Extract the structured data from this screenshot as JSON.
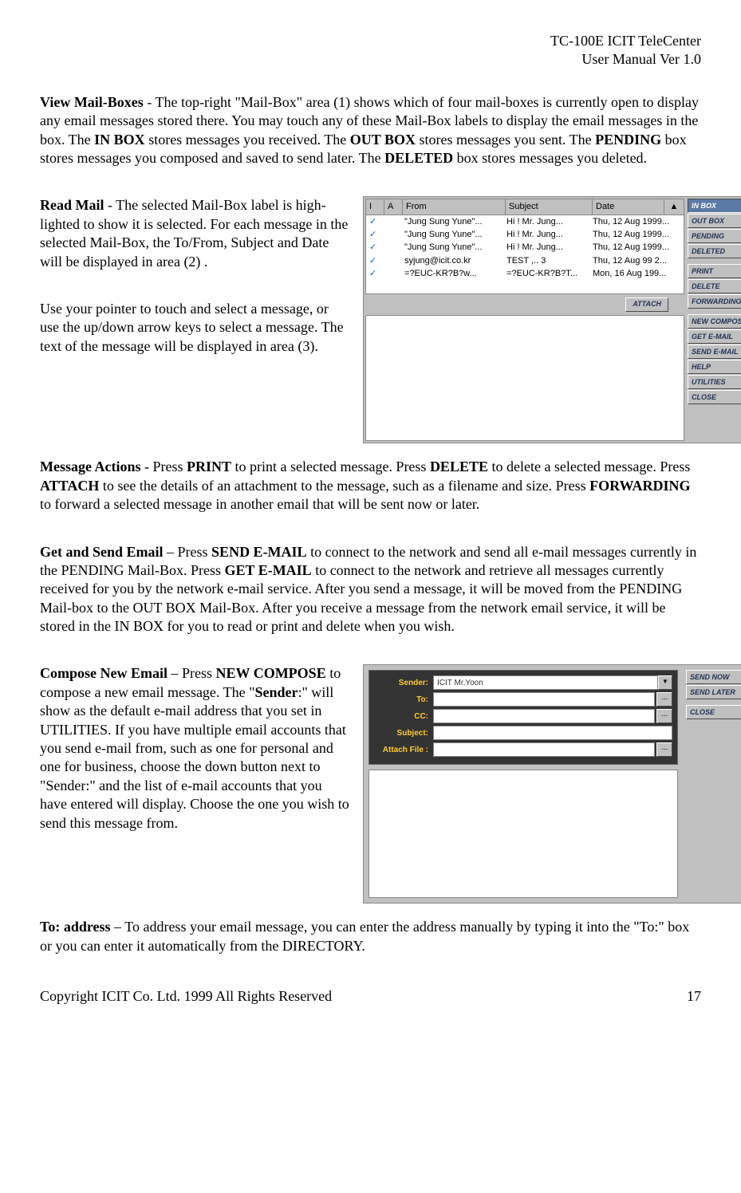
{
  "header": {
    "line1": "TC-100E ICIT TeleCenter",
    "line2": "User Manual  Ver 1.0"
  },
  "p1": {
    "lead": "View Mail-Boxes",
    "t1": " - The top-right \"Mail-Box\" area (1) shows which of four mail-boxes is currently open to display any email messages stored there. You may touch any of these Mail-Box labels to display the email messages in the box. The ",
    "b1": "IN BOX",
    "t2": " stores messages you received. The ",
    "b2": "OUT BOX",
    "t3": " stores messages you sent. The ",
    "b3": "PENDING",
    "t4": " box stores messages you composed and saved to send later. The ",
    "b4": "DELETED",
    "t5": " box stores messages you deleted."
  },
  "p2": {
    "lead": "Read Mail",
    "t1": " - The selected Mail-Box label is high-lighted to show it is selected. For each message in the selected Mail-Box, the To/From, Subject and Date will be displayed in area (2) ."
  },
  "p3": {
    "t1": "Use your pointer to touch and select a message, or use the up/down arrow keys to select a message. The text of the message will be displayed in area (3)."
  },
  "p4": {
    "lead": "Message Actions",
    "t1": " - Press ",
    "b1": "PRINT",
    "t2": " to print a selected message. Press ",
    "b2": "DELETE",
    "t3": " to delete a selected message. Press ",
    "b3": "ATTACH",
    "t4": " to see the details of an attachment to the message, such as a filename and size. Press ",
    "b4": "FORWARDING",
    "t5": " to forward a selected message in another email that will be sent now or later."
  },
  "p5": {
    "lead": "Get and Send Email",
    "t1": " – Press ",
    "b1": "SEND E-MAIL",
    "t2": " to connect to the network and send all e-mail messages currently in the PENDING Mail-Box. Press ",
    "b2": "GET E-MAIL",
    "t3": " to connect to the network and retrieve all messages currently received for you by the network e-mail service.  After you send a message, it will be moved from the PENDING Mail-box to the OUT BOX Mail-Box. After you receive a message from the network email service, it will be stored in the IN BOX for you to read or print and delete when you wish."
  },
  "p6": {
    "lead": "Compose New Email",
    "t1": " –  Press ",
    "b1": "NEW COMPOSE",
    "t2": " to compose a new email message.  The \"",
    "b2": "Sender",
    "t3": ":\" will show as the default e-mail address that you set in UTILITIES. If you have multiple email accounts that you send e-mail from, such as one for personal and one for business, choose the down button next to \"Sender:\" and the list of e-mail accounts that you have entered will display. Choose the one you wish to send this message from."
  },
  "p7": {
    "lead": "To:  address",
    "t1": " – To address your email message, you can enter the address manually by typing it into the \"To:\"  box or you can enter it automatically from the DIRECTORY."
  },
  "footer": {
    "copyright": "Copyright ICIT Co. Ltd. 1999  All Rights Reserved",
    "page": "17"
  },
  "shot1": {
    "columns": {
      "i": "I",
      "a": "A",
      "from": "From",
      "subject": "Subject",
      "date": "Date",
      "scroll": "▲"
    },
    "rows": [
      {
        "check": "✓",
        "from": "\"Jung Sung Yune\"...",
        "subject": "Hi ! Mr. Jung...",
        "date": "Thu, 12 Aug 1999..."
      },
      {
        "check": "✓",
        "from": "\"Jung Sung Yune\"...",
        "subject": "Hi ! Mr. Jung...",
        "date": "Thu, 12 Aug 1999..."
      },
      {
        "check": "✓",
        "from": "\"Jung Sung Yune\"...",
        "subject": "Hi ! Mr. Jung...",
        "date": "Thu, 12 Aug 1999..."
      },
      {
        "check": "✓",
        "from": "syjung@icit.co.kr",
        "subject": "TEST ,.. 3",
        "date": "Thu, 12 Aug 99 2..."
      },
      {
        "check": "✓",
        "from": "=?EUC-KR?B?w...",
        "subject": "=?EUC-KR?B?T...",
        "date": "Mon, 16 Aug 199..."
      }
    ],
    "attach": "ATTACH",
    "side": {
      "inbox": "IN BOX",
      "outbox": "OUT BOX",
      "pending": "PENDING",
      "deleted": "DELETED",
      "print": "PRINT",
      "delete": "DELETE",
      "forwarding": "FORWARDING",
      "newcompose": "NEW COMPOSE",
      "getemail": "GET E-MAIL",
      "sendemail": "SEND E-MAIL",
      "help": "HELP",
      "utilities": "UTILITIES",
      "close": "CLOSE"
    }
  },
  "shot2": {
    "labels": {
      "sender": "Sender:",
      "to": "To:",
      "cc": "CC:",
      "subject": "Subject:",
      "attach": "Attach File :"
    },
    "sender_value": "ICIT Mr.Yoon",
    "sender_dropdown": "▼",
    "dots": "...",
    "side": {
      "sendnow": "SEND NOW",
      "sendlater": "SEND LATER",
      "close": "CLOSE"
    }
  }
}
